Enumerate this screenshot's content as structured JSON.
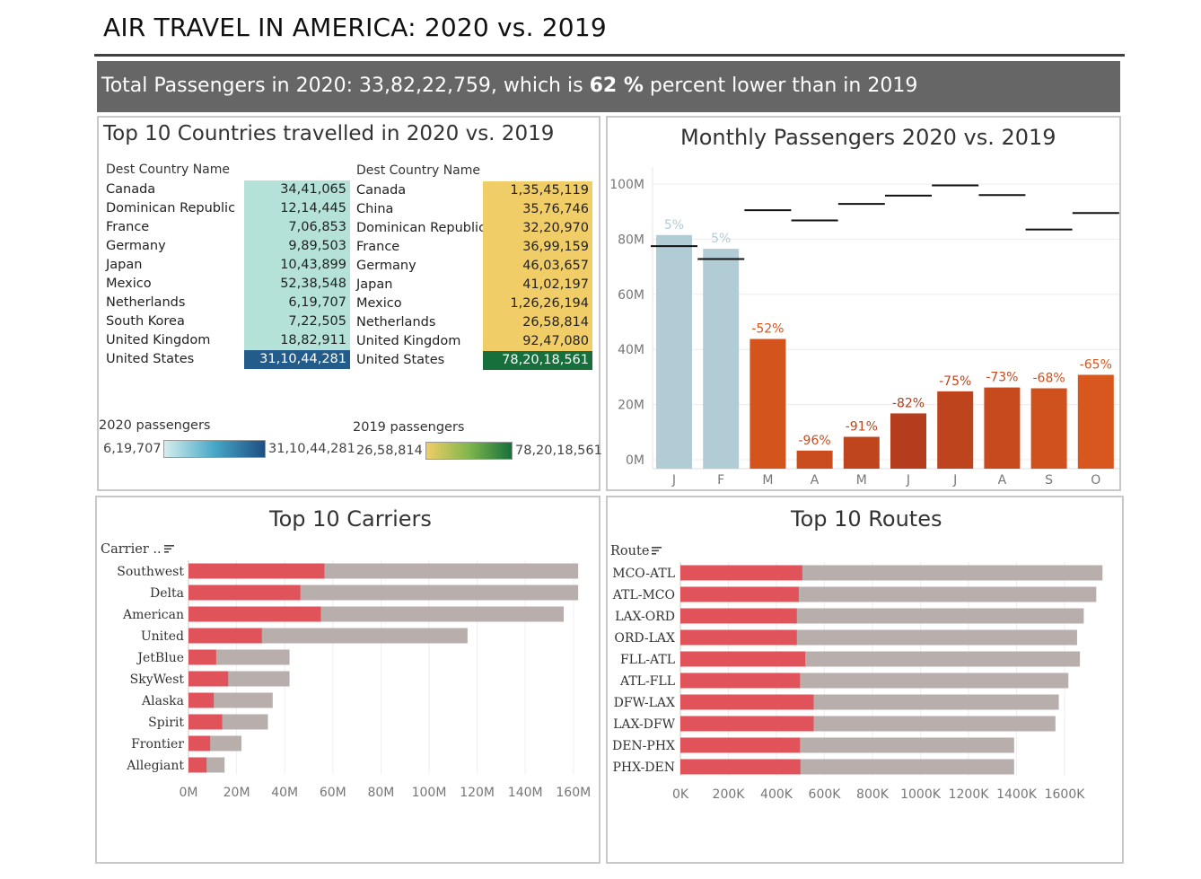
{
  "page": {
    "title": "AIR TRAVEL IN AMERICA: 2020 vs. 2019",
    "banner_prefix": "Total Passengers in 2020: 33,82,22,759, which is ",
    "banner_pct": "62 %",
    "banner_suffix": " percent lower than in 2019"
  },
  "colors": {
    "banner_bg": "#666666",
    "teal_light": "#b4e2d8",
    "blue_dark": "#235c8b",
    "yellow": "#f0cd66",
    "green_dark": "#17703b",
    "bar_2020_gain": "#b2ccd6",
    "bar_2020_loss_light": "#e8641f",
    "bar_2020_loss_dark": "#b53d1d",
    "carrier_2020": "#e1535a",
    "carrier_2019": "#b8aeac"
  },
  "countries": {
    "title": "Top 10 Countries travelled in 2020 vs. 2019",
    "header_2020": "Dest Country Name",
    "header_2019": "Dest Country Name",
    "rows_2020": [
      {
        "name": "Canada",
        "value": "34,41,065",
        "n": 3441065
      },
      {
        "name": "Dominican Republic",
        "value": "12,14,445",
        "n": 1214445
      },
      {
        "name": "France",
        "value": "7,06,853",
        "n": 706853
      },
      {
        "name": "Germany",
        "value": "9,89,503",
        "n": 989503
      },
      {
        "name": "Japan",
        "value": "10,43,899",
        "n": 1043899
      },
      {
        "name": "Mexico",
        "value": "52,38,548",
        "n": 5238548
      },
      {
        "name": "Netherlands",
        "value": "6,19,707",
        "n": 619707
      },
      {
        "name": "South Korea",
        "value": "7,22,505",
        "n": 722505
      },
      {
        "name": "United Kingdom",
        "value": "18,82,911",
        "n": 1882911
      },
      {
        "name": "United States",
        "value": "31,10,44,281",
        "n": 311044281
      }
    ],
    "rows_2019": [
      {
        "name": "Canada",
        "value": "1,35,45,119",
        "n": 13545119
      },
      {
        "name": "China",
        "value": "35,76,746",
        "n": 3576746
      },
      {
        "name": "Dominican Republic",
        "value": "32,20,970",
        "n": 3220970
      },
      {
        "name": "France",
        "value": "36,99,159",
        "n": 3699159
      },
      {
        "name": "Germany",
        "value": "46,03,657",
        "n": 4603657
      },
      {
        "name": "Japan",
        "value": "41,02,197",
        "n": 4102197
      },
      {
        "name": "Mexico",
        "value": "1,26,26,194",
        "n": 12626194
      },
      {
        "name": "Netherlands",
        "value": "26,58,814",
        "n": 2658814
      },
      {
        "name": "United Kingdom",
        "value": "92,47,080",
        "n": 9247080
      },
      {
        "name": "United States",
        "value": "78,20,18,561",
        "n": 782018561
      }
    ],
    "legend_2020": {
      "title": "2020 passengers",
      "min": "6,19,707",
      "max": "31,10,44,281"
    },
    "legend_2019": {
      "title": "2019 passengers",
      "min": "26,58,814",
      "max": "78,20,18,561"
    }
  },
  "chart_data": [
    {
      "type": "bar",
      "title": "Monthly Passengers 2020 vs. 2019",
      "categories": [
        "J",
        "F",
        "M",
        "A",
        "M",
        "J",
        "J",
        "A",
        "S",
        "O"
      ],
      "series": [
        {
          "values": [
            81.5,
            76.5,
            43.8,
            3.3,
            8.3,
            16.8,
            24.8,
            26.2,
            25.9,
            30.8
          ]
        },
        {
          "values": [
            77.5,
            72.8,
            90.5,
            86.8,
            92.8,
            95.8,
            99.5,
            96.0,
            83.5,
            89.5
          ]
        }
      ],
      "labels": [
        "5%",
        "5%",
        "-52%",
        "-96%",
        "-91%",
        "-82%",
        "-75%",
        "-73%",
        "-68%",
        "-65%"
      ],
      "yticks": [
        "0M",
        "20M",
        "40M",
        "60M",
        "80M",
        "100M"
      ],
      "ylim": [
        0,
        105
      ],
      "grid": true
    },
    {
      "type": "bar",
      "orientation": "horizontal",
      "title": "Top 10 Carriers",
      "field_header": "Carrier ..",
      "categories": [
        "Southwest",
        "Delta",
        "American",
        "United",
        "JetBlue",
        "SkyWest",
        "Alaska",
        "Spirit",
        "Frontier",
        "Allegiant"
      ],
      "series": [
        {
          "values": [
            56.5,
            46.5,
            55.0,
            30.5,
            11.5,
            16.5,
            10.5,
            14.0,
            9.0,
            7.5
          ]
        },
        {
          "values": [
            162,
            162,
            156,
            116,
            42,
            42,
            35,
            33,
            22,
            15
          ]
        }
      ],
      "xticks": [
        "0M",
        "20M",
        "40M",
        "60M",
        "80M",
        "100M",
        "120M",
        "140M",
        "160M"
      ],
      "xlim": [
        0,
        166
      ]
    },
    {
      "type": "bar",
      "orientation": "horizontal",
      "title": "Top 10 Routes",
      "field_header": "Route",
      "categories": [
        "MCO-ATL",
        "ATL-MCO",
        "LAX-ORD",
        "ORD-LAX",
        "FLL-ATL",
        "ATL-FLL",
        "DFW-LAX",
        "LAX-DFW",
        "DEN-PHX",
        "PHX-DEN"
      ],
      "series": [
        {
          "values": [
            508000,
            493000,
            485000,
            485000,
            520000,
            498000,
            555000,
            555000,
            498000,
            500000
          ]
        },
        {
          "values": [
            1758000,
            1732000,
            1680000,
            1652000,
            1664000,
            1616000,
            1576000,
            1562000,
            1390000,
            1390000
          ]
        }
      ],
      "xticks": [
        "0K",
        "200K",
        "400K",
        "600K",
        "800K",
        "1000K",
        "1200K",
        "1400K",
        "1600K"
      ],
      "xlim": [
        0,
        1800000
      ]
    }
  ]
}
